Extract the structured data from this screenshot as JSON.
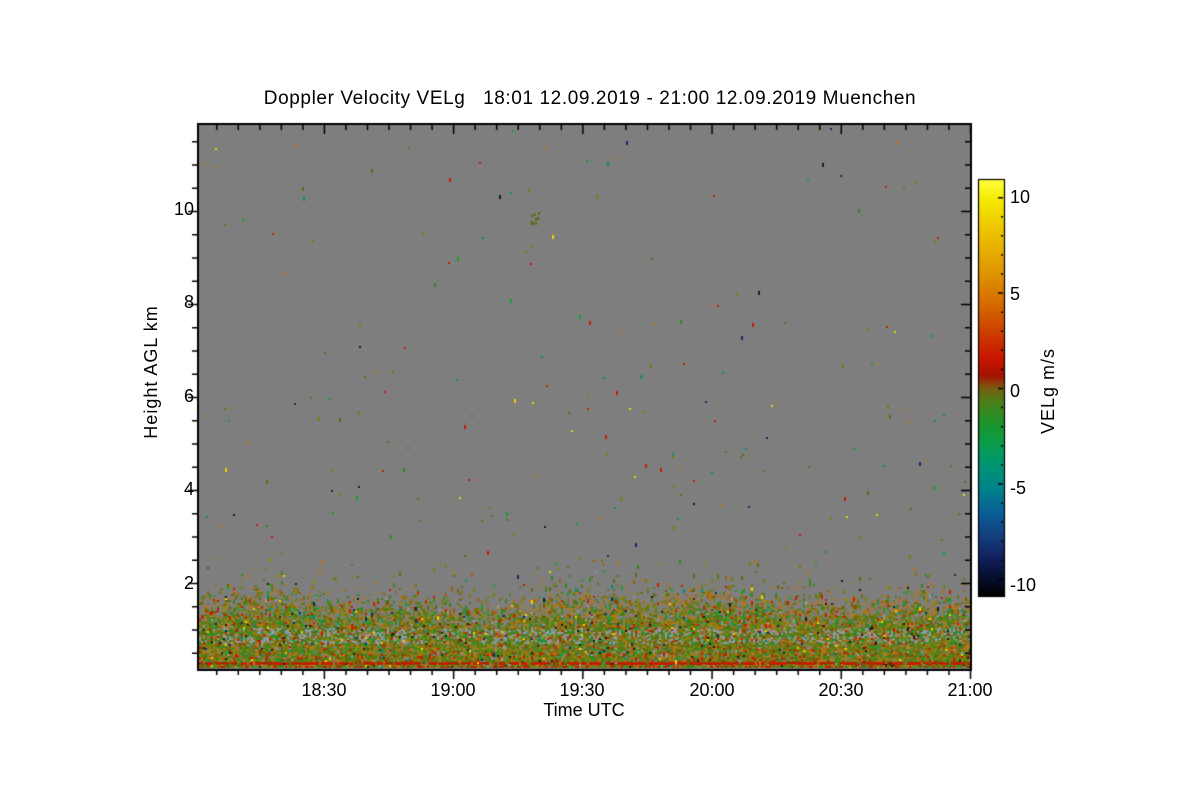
{
  "title": "Doppler Velocity VELg   18:01 12.09.2019 - 21:00 12.09.2019 Muenchen",
  "x_axis": {
    "label": "Time UTC",
    "ticks": [
      "18:30",
      "19:00",
      "19:30",
      "20:00",
      "20:30",
      "21:00"
    ]
  },
  "y_axis": {
    "label": "Height AGL km",
    "ticks": [
      "2",
      "4",
      "6",
      "8",
      "10"
    ]
  },
  "colorbar": {
    "label": "VELg m/s",
    "ticks": [
      "10",
      "5",
      "0",
      "-5",
      "-10"
    ]
  },
  "chart_data": {
    "type": "heatmap",
    "title": "Doppler Velocity VELg   18:01 12.09.2019 - 21:00 12.09.2019 Muenchen",
    "xlabel": "Time UTC",
    "ylabel": "Height AGL km",
    "colorbar_label": "VELg m/s",
    "location": "Muenchen",
    "date": "12.09.2019",
    "time_range_utc": [
      "18:01",
      "21:00"
    ],
    "x_tick_labels": [
      "18:30",
      "19:00",
      "19:30",
      "20:00",
      "20:30",
      "21:00"
    ],
    "x_minor_tick_minutes": 5,
    "y_range_km": [
      0.15,
      11.85
    ],
    "y_ticks_km": [
      2,
      4,
      6,
      8,
      10
    ],
    "y_minor_tick_km": 0.5,
    "value_range_ms": [
      -10.9,
      10.9
    ],
    "colorbar_tick_values": [
      10,
      5,
      0,
      -5,
      -10
    ],
    "colorbar_minor_tick_ms": 1,
    "background_meaning": "uniform gray = no valid signal / clear air",
    "features": [
      {
        "name": "boundary-layer-band",
        "height_km": [
          0.15,
          1.8
        ],
        "description": "dense speckled mix of weak positive velocities (orange-brown, ~+1 to +4 m/s) and weak negative velocities (olive/green, ~-1 to -3 m/s); orange-topped plumes near 18:35, 19:25-19:45, 20:05-20:30 and after 20:35"
      },
      {
        "name": "gray-blue-streaks",
        "height_km": [
          0.8,
          1.0
        ],
        "description": "lighter blue-gray horizontal streak rows inside the band"
      },
      {
        "name": "surface-red-line",
        "height_km": 0.28,
        "description": "nearly continuous red line (~+1.5 m/s) across the whole time range"
      },
      {
        "name": "noise-speckles",
        "height_km": [
          2,
          11.8
        ],
        "description": "sparse random 1-2 px colored noise pixels (yellow, olive, green, red, orange, navy, teal) over gray"
      }
    ],
    "palette": {
      "background": "#7e7e7e",
      "olive": "#7c7a12",
      "olive_dark": "#636a10",
      "olive_bright": "#94880e",
      "green": "#3c8520",
      "green_bright": "#17a02a",
      "orange": "#b27420",
      "orange_dark": "#9a6016",
      "red": "#c41e00",
      "red_dark": "#8f2e00",
      "yellow": "#e8d400",
      "teal": "#0b8d74",
      "navy": "#152a62",
      "gray_blue": "#8d99a6",
      "dark": "#1c1c10"
    },
    "colormap_gradient": [
      [
        0.0,
        "#ffff3c"
      ],
      [
        0.05,
        "#f4e800"
      ],
      [
        0.13,
        "#ecc000"
      ],
      [
        0.22,
        "#e09600"
      ],
      [
        0.3,
        "#d66a00"
      ],
      [
        0.37,
        "#cc3c00"
      ],
      [
        0.43,
        "#c81400"
      ],
      [
        0.47,
        "#a51200"
      ],
      [
        0.5,
        "#7a5a10"
      ],
      [
        0.53,
        "#4f7d18"
      ],
      [
        0.58,
        "#209328"
      ],
      [
        0.63,
        "#0a9c46"
      ],
      [
        0.68,
        "#009771"
      ],
      [
        0.74,
        "#008489"
      ],
      [
        0.8,
        "#0a5f97"
      ],
      [
        0.86,
        "#143c7e"
      ],
      [
        0.91,
        "#111f5a"
      ],
      [
        0.96,
        "#060d2a"
      ],
      [
        1.0,
        "#000000"
      ]
    ]
  }
}
